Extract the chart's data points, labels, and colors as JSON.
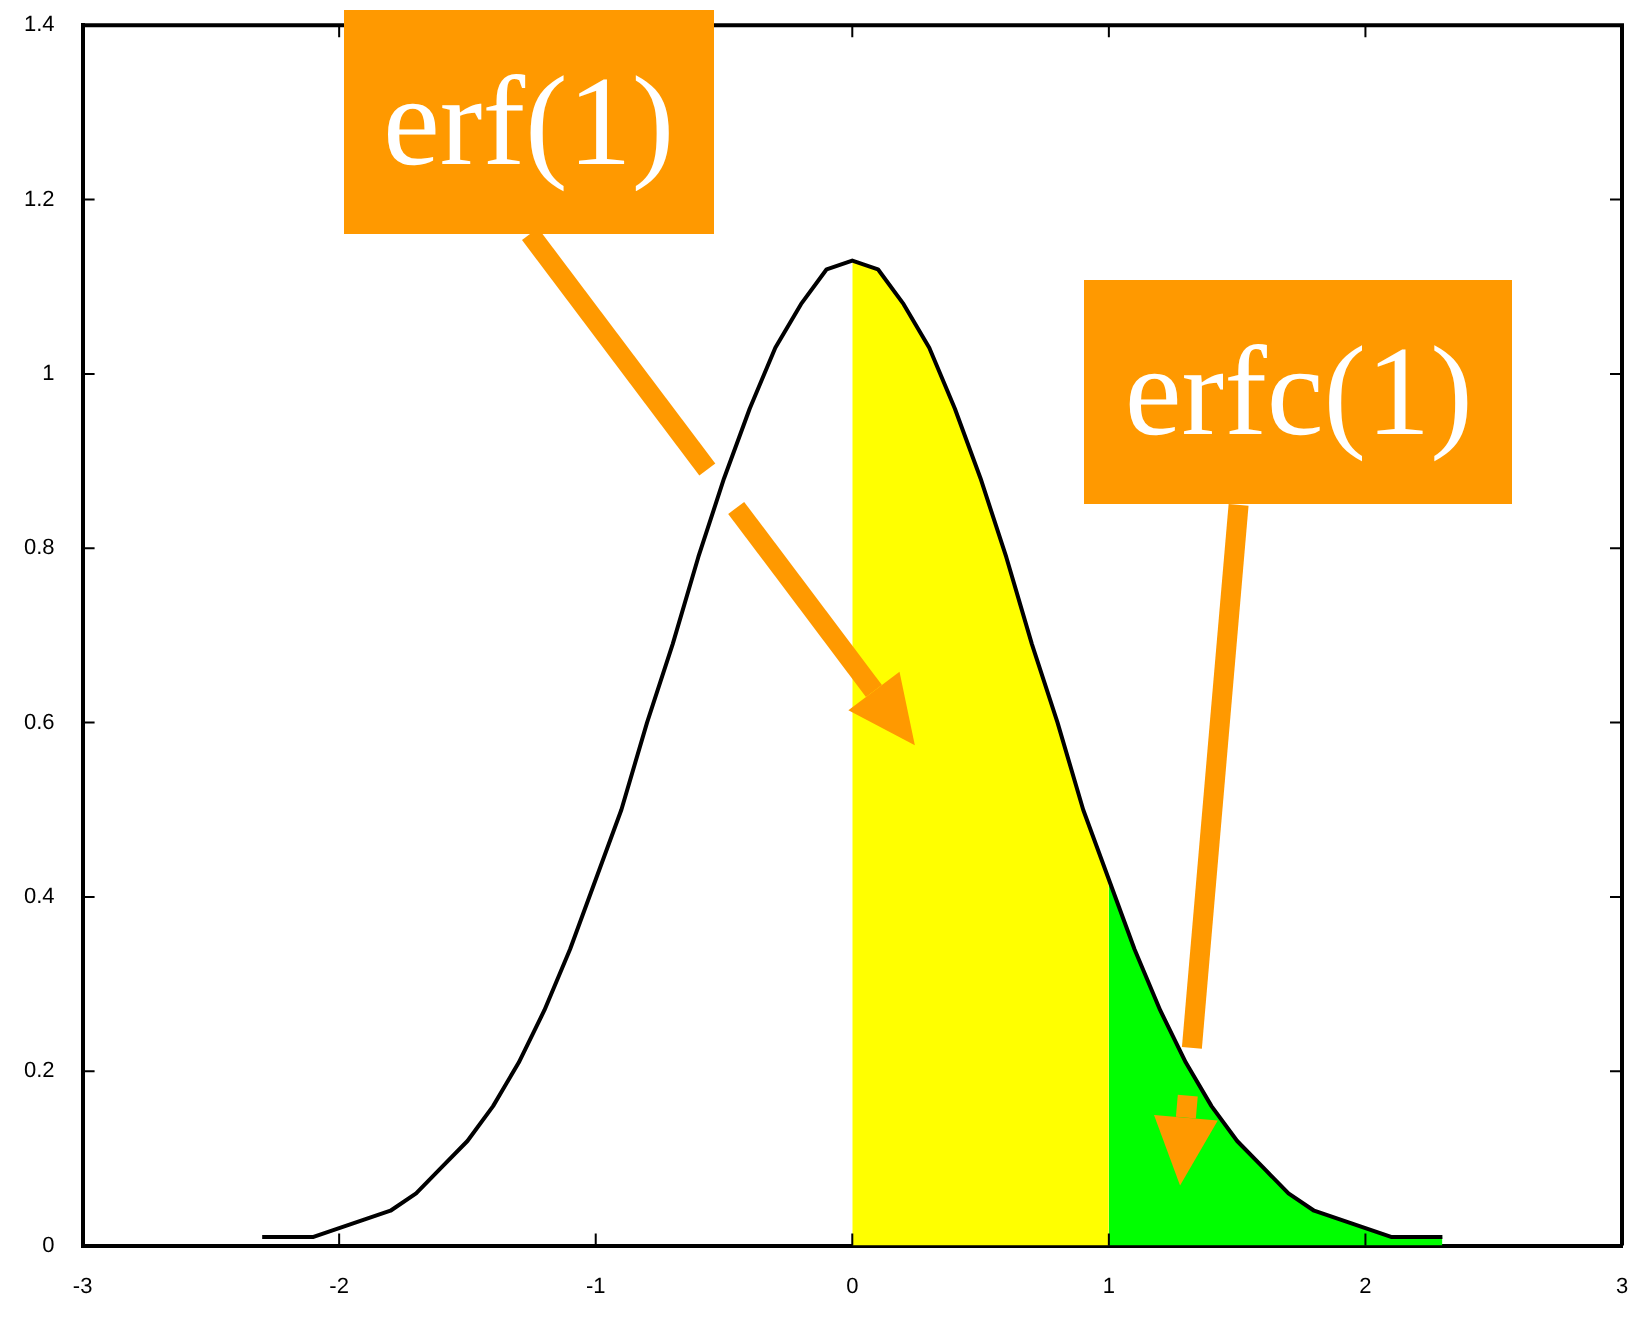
{
  "chart_data": {
    "type": "line",
    "xlim": [
      -3,
      3
    ],
    "xticks": [
      -3,
      -2,
      -1,
      0,
      1,
      2,
      3
    ],
    "ylim": [
      0,
      1.4
    ],
    "yticks": [
      0,
      0.2,
      0.4,
      0.6,
      0.8,
      1,
      1.2,
      1.4
    ],
    "grid": false,
    "legend": false,
    "marker": "none",
    "series": [
      {
        "type": "area",
        "color": "#ffff00",
        "x": [
          0,
          0.1,
          0.2,
          0.3,
          0.4,
          0.5,
          0.6,
          0.7,
          0.8,
          0.9,
          1
        ],
        "values": [
          1.13,
          1.12,
          1.08,
          1.03,
          0.96,
          0.88,
          0.79,
          0.69,
          0.6,
          0.5,
          0.42
        ]
      },
      {
        "type": "area",
        "color": "#00ff00",
        "x": [
          1,
          1.1,
          1.2,
          1.3,
          1.4,
          1.5,
          1.6,
          1.7,
          1.8,
          1.9,
          2,
          2.1,
          2.2,
          2.3
        ],
        "values": [
          0.42,
          0.34,
          0.27,
          0.21,
          0.16,
          0.12,
          0.09,
          0.06,
          0.04,
          0.03,
          0.02,
          0.01,
          0.01,
          0.01
        ]
      },
      {
        "type": "line",
        "color": "#000000",
        "x": [
          -2.3,
          -2.2,
          -2.1,
          -2,
          -1.9,
          -1.8,
          -1.7,
          -1.6,
          -1.5,
          -1.4,
          -1.3,
          -1.2,
          -1.1,
          -1,
          -0.9,
          -0.8,
          -0.7,
          -0.6,
          -0.5,
          -0.4,
          -0.3,
          -0.2,
          -0.1,
          0,
          0.1,
          0.2,
          0.3,
          0.4,
          0.5,
          0.6,
          0.7,
          0.8,
          0.9,
          1,
          1.1,
          1.2,
          1.3,
          1.4,
          1.5,
          1.6,
          1.7,
          1.8,
          1.9,
          2,
          2.1,
          2.2,
          2.3
        ],
        "values": [
          0.01,
          0.01,
          0.01,
          0.02,
          0.03,
          0.04,
          0.06,
          0.09,
          0.12,
          0.16,
          0.21,
          0.27,
          0.34,
          0.42,
          0.5,
          0.6,
          0.69,
          0.79,
          0.88,
          0.96,
          1.03,
          1.08,
          1.12,
          1.13,
          1.12,
          1.08,
          1.03,
          0.96,
          0.88,
          0.79,
          0.69,
          0.6,
          0.5,
          0.42,
          0.34,
          0.27,
          0.21,
          0.16,
          0.12,
          0.09,
          0.06,
          0.04,
          0.03,
          0.02,
          0.01,
          0.01,
          0.01
        ]
      }
    ],
    "annotations": [
      "erf(1)",
      "erfc(1)"
    ]
  }
}
